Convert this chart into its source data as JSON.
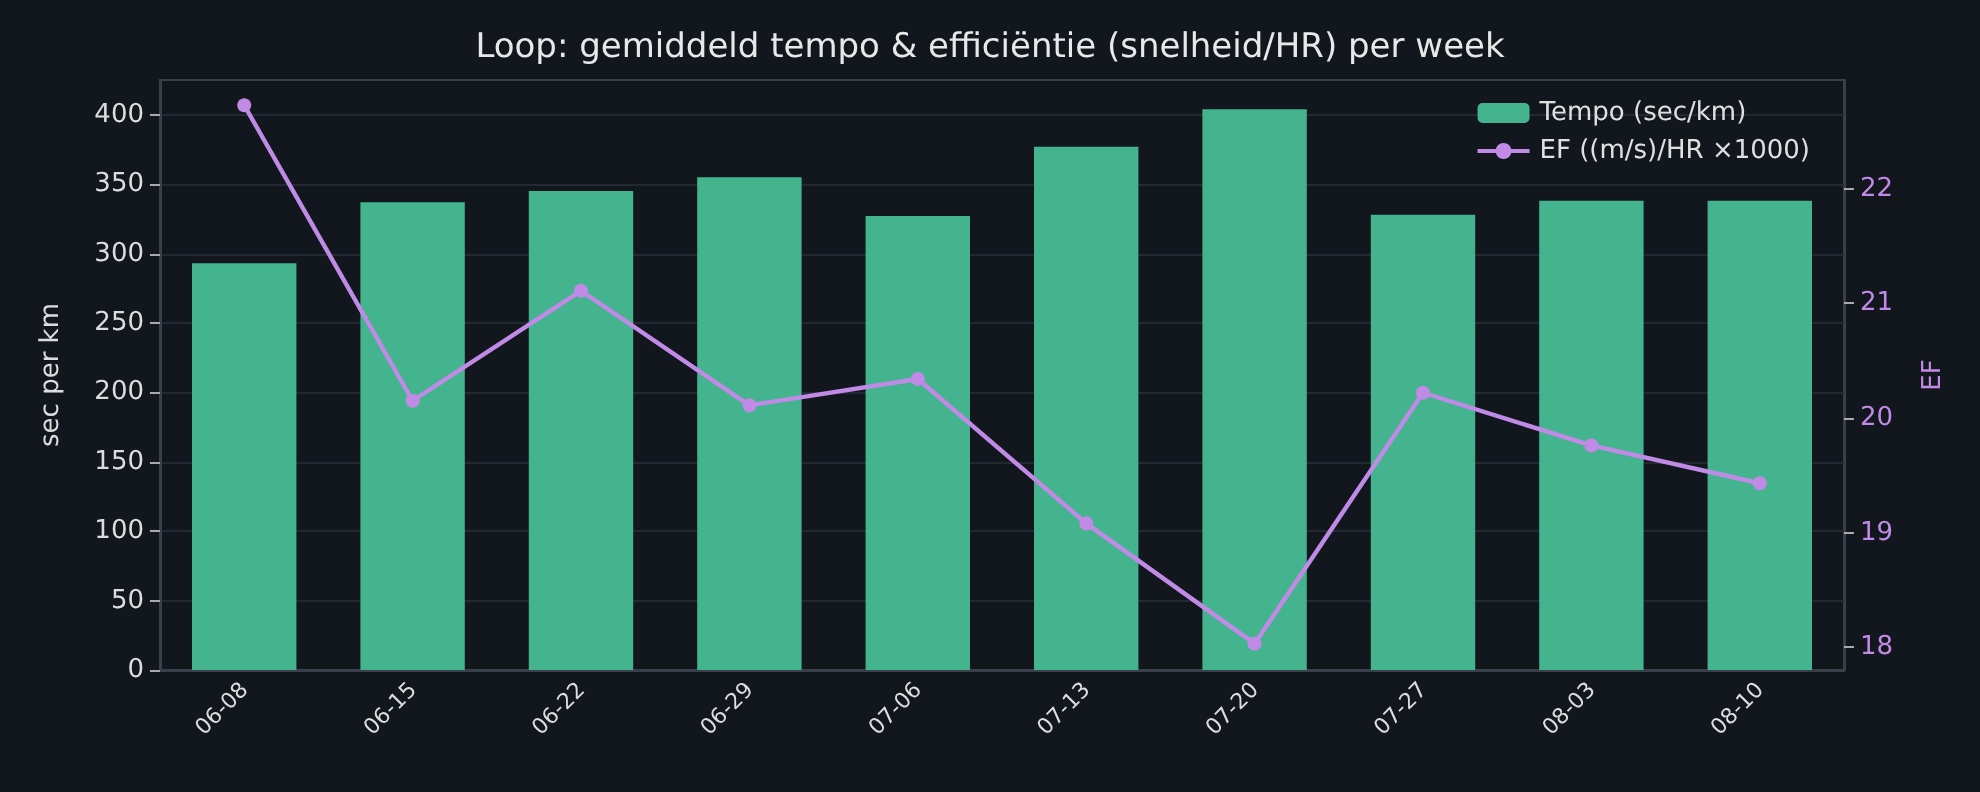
{
  "chart_data": {
    "type": "bar",
    "title": "Loop: gemiddeld tempo & efficiëntie (snelheid/HR) per week",
    "ylabel": "sec per km",
    "y2label": "EF",
    "categories": [
      "06-08",
      "06-15",
      "06-22",
      "06-29",
      "07-06",
      "07-13",
      "07-20",
      "07-27",
      "08-03",
      "08-10"
    ],
    "series": [
      {
        "name": "Tempo (sec/km)",
        "color": "#43b48e",
        "values": [
          293,
          337,
          345,
          355,
          327,
          377,
          404,
          328,
          338,
          338
        ]
      },
      {
        "name": "EF ((m/s)/HR ×1000)",
        "type": "line",
        "axis": "y2",
        "color": "#c08ae6",
        "marker": "circle",
        "values": [
          22.73,
          20.15,
          21.11,
          20.11,
          20.34,
          19.08,
          18.03,
          20.22,
          19.76,
          19.43
        ]
      }
    ],
    "ylim": [
      0,
      425
    ],
    "yticks": [
      0,
      50,
      100,
      150,
      200,
      250,
      300,
      350,
      400
    ],
    "y2lim": [
      17.8,
      22.95
    ],
    "y2ticks": [
      18,
      19,
      20,
      21,
      22
    ],
    "grid": "y",
    "legend": "top right"
  }
}
